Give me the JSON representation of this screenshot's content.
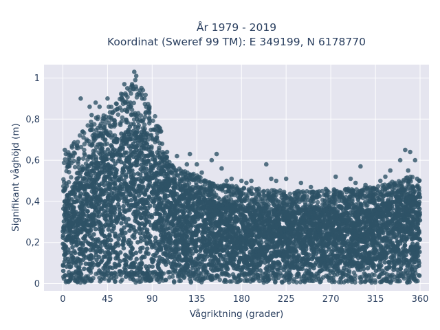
{
  "chart_data": {
    "type": "scatter",
    "title_line1": "År 1979 - 2019",
    "title_line2": "Koordinat (Sweref 99 TM): E 349199, N 6178770",
    "xlabel": "Vågriktning (grader)",
    "ylabel": "Signifikant våghöjd (m)",
    "xlim": [
      -19,
      369
    ],
    "ylim": [
      -0.035,
      1.065
    ],
    "xticks": [
      0,
      45,
      90,
      135,
      180,
      225,
      270,
      315,
      360
    ],
    "xtick_labels": [
      "0",
      "45",
      "90",
      "135",
      "180",
      "225",
      "270",
      "315",
      "360"
    ],
    "yticks": [
      0,
      0.2,
      0.4,
      0.6,
      0.8,
      1
    ],
    "ytick_labels": [
      "0",
      "0,2",
      "0,4",
      "0,6",
      "0,8",
      "1"
    ],
    "grid": true,
    "marker_color": "#2e5266",
    "plot_background": "#e5e5ef",
    "envelope": {
      "description_x": [
        0,
        10,
        20,
        30,
        45,
        60,
        70,
        80,
        90,
        100,
        110,
        120,
        135,
        150,
        180,
        225,
        270,
        315,
        340,
        360
      ],
      "core_upper": [
        0.4,
        0.48,
        0.56,
        0.6,
        0.66,
        0.74,
        0.78,
        0.76,
        0.64,
        0.56,
        0.5,
        0.46,
        0.44,
        0.4,
        0.38,
        0.36,
        0.37,
        0.38,
        0.42,
        0.44
      ],
      "core_lower": [
        0.06,
        0.04,
        0.04,
        0.04,
        0.03,
        0.03,
        0.03,
        0.03,
        0.04,
        0.05,
        0.05,
        0.05,
        0.05,
        0.06,
        0.06,
        0.06,
        0.06,
        0.06,
        0.05,
        0.05
      ]
    },
    "outliers": [
      {
        "x": 2,
        "y": 0.65
      },
      {
        "x": 3,
        "y": 0.63
      },
      {
        "x": 18,
        "y": 0.9
      },
      {
        "x": 27,
        "y": 0.86
      },
      {
        "x": 29,
        "y": 0.82
      },
      {
        "x": 33,
        "y": 0.88
      },
      {
        "x": 37,
        "y": 0.86
      },
      {
        "x": 45,
        "y": 0.9
      },
      {
        "x": 47,
        "y": 0.81
      },
      {
        "x": 50,
        "y": 0.83
      },
      {
        "x": 55,
        "y": 0.85
      },
      {
        "x": 60,
        "y": 0.92
      },
      {
        "x": 62,
        "y": 0.97
      },
      {
        "x": 65,
        "y": 0.95
      },
      {
        "x": 68,
        "y": 0.88
      },
      {
        "x": 70,
        "y": 0.96
      },
      {
        "x": 72,
        "y": 1.03
      },
      {
        "x": 73,
        "y": 0.99
      },
      {
        "x": 74,
        "y": 1.01
      },
      {
        "x": 75,
        "y": 0.92
      },
      {
        "x": 78,
        "y": 0.94
      },
      {
        "x": 80,
        "y": 0.9
      },
      {
        "x": 84,
        "y": 0.86
      },
      {
        "x": 87,
        "y": 0.83
      },
      {
        "x": 100,
        "y": 0.68
      },
      {
        "x": 105,
        "y": 0.64
      },
      {
        "x": 115,
        "y": 0.62
      },
      {
        "x": 125,
        "y": 0.58
      },
      {
        "x": 128,
        "y": 0.63
      },
      {
        "x": 135,
        "y": 0.58
      },
      {
        "x": 140,
        "y": 0.54
      },
      {
        "x": 150,
        "y": 0.6
      },
      {
        "x": 155,
        "y": 0.63
      },
      {
        "x": 160,
        "y": 0.56
      },
      {
        "x": 165,
        "y": 0.5
      },
      {
        "x": 170,
        "y": 0.51
      },
      {
        "x": 180,
        "y": 0.5
      },
      {
        "x": 185,
        "y": 0.49
      },
      {
        "x": 190,
        "y": 0.5
      },
      {
        "x": 205,
        "y": 0.58
      },
      {
        "x": 210,
        "y": 0.51
      },
      {
        "x": 215,
        "y": 0.5
      },
      {
        "x": 225,
        "y": 0.51
      },
      {
        "x": 240,
        "y": 0.49
      },
      {
        "x": 250,
        "y": 0.47
      },
      {
        "x": 265,
        "y": 0.46
      },
      {
        "x": 275,
        "y": 0.52
      },
      {
        "x": 290,
        "y": 0.51
      },
      {
        "x": 295,
        "y": 0.49
      },
      {
        "x": 300,
        "y": 0.57
      },
      {
        "x": 305,
        "y": 0.48
      },
      {
        "x": 310,
        "y": 0.45
      },
      {
        "x": 320,
        "y": 0.5
      },
      {
        "x": 325,
        "y": 0.52
      },
      {
        "x": 330,
        "y": 0.55
      },
      {
        "x": 340,
        "y": 0.6
      },
      {
        "x": 345,
        "y": 0.65
      },
      {
        "x": 348,
        "y": 0.55
      },
      {
        "x": 350,
        "y": 0.64
      },
      {
        "x": 355,
        "y": 0.6
      },
      {
        "x": 357,
        "y": 0.51
      },
      {
        "x": 359,
        "y": 0.5
      }
    ]
  }
}
